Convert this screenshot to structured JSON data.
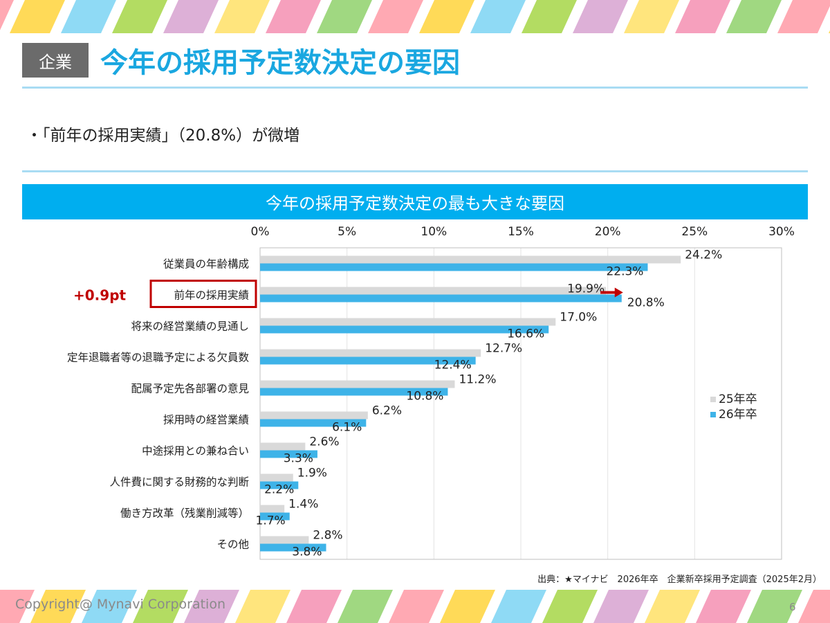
{
  "header": {
    "tag": "企業",
    "title": "今年の採用予定数決定の要因"
  },
  "bullet": "・「前年の採用実績」（20.8%）が微増",
  "chart_banner": "今年の採用予定数決定の最も大きな要因",
  "chart_data": {
    "type": "bar",
    "orientation": "horizontal",
    "categories": [
      "従業員の年齢構成",
      "前年の採用実績",
      "将来の経営業績の見通し",
      "定年退職者等の退職予定による欠員数",
      "配属予定先各部署の意見",
      "採用時の経営業績",
      "中途採用との兼ね合い",
      "人件費に関する財務的な判断",
      "働き方改革（残業削減等）",
      "その他"
    ],
    "series": [
      {
        "name": "25年卒",
        "values": [
          24.2,
          19.9,
          17.0,
          12.7,
          11.2,
          6.2,
          2.6,
          1.9,
          1.4,
          2.8
        ],
        "color": "#d9d9d9"
      },
      {
        "name": "26年卒",
        "values": [
          22.3,
          20.8,
          16.6,
          12.4,
          10.8,
          6.1,
          3.3,
          2.2,
          1.7,
          3.8
        ],
        "color": "#3eb3e8"
      }
    ],
    "xlim": [
      0,
      30
    ],
    "xticks": [
      "0%",
      "5%",
      "10%",
      "15%",
      "20%",
      "25%",
      "30%"
    ],
    "unit": "%",
    "legend_position": "right",
    "annotation": {
      "text": "+0.9pt",
      "category": "前年の採用実績",
      "color": "#c00000"
    }
  },
  "source": "出典：★マイナビ　2026年卒　企業新卒採用予定調査（2025年2月）",
  "footer": {
    "copyright": "Copyright@ Mynavi Corporation",
    "page": "6"
  },
  "stripe_colors": [
    "#ff9aa6",
    "#ffd43b",
    "#7bd3f3",
    "#a6d646",
    "#d7a2d0",
    "#ffe066",
    "#f48fb1",
    "#8fd16b"
  ]
}
